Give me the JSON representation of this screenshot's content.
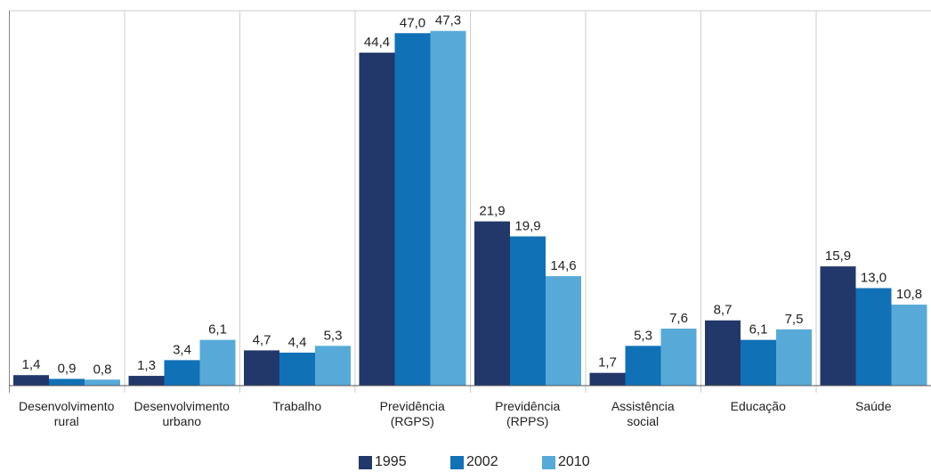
{
  "chart_data": {
    "type": "bar",
    "categories": [
      "Desenvolvimento rural",
      "Desenvolvimento urbano",
      "Trabalho",
      "Previdência (RGPS)",
      "Previdência (RPPS)",
      "Assistência social",
      "Educação",
      "Saúde"
    ],
    "series": [
      {
        "name": "1995",
        "color": "#22386a",
        "values": [
          1.4,
          1.3,
          4.7,
          44.4,
          21.9,
          1.7,
          8.7,
          15.9
        ],
        "value_labels": [
          "1,4",
          "1,3",
          "4,7",
          "44,4",
          "21,9",
          "1,7",
          "8,7",
          "15,9"
        ]
      },
      {
        "name": "2002",
        "color": "#1171b7",
        "values": [
          0.9,
          3.4,
          4.4,
          47.0,
          19.9,
          5.3,
          6.1,
          13.0
        ],
        "value_labels": [
          "0,9",
          "3,4",
          "4,4",
          "47,0",
          "19,9",
          "5,3",
          "6,1",
          "13,0"
        ]
      },
      {
        "name": "2010",
        "color": "#57aad8",
        "values": [
          0.8,
          6.1,
          5.3,
          47.3,
          14.6,
          7.6,
          7.5,
          10.8
        ],
        "value_labels": [
          "0,8",
          "6,1",
          "5,3",
          "47,3",
          "14,6",
          "7,6",
          "7,5",
          "10,8"
        ]
      }
    ]
  }
}
